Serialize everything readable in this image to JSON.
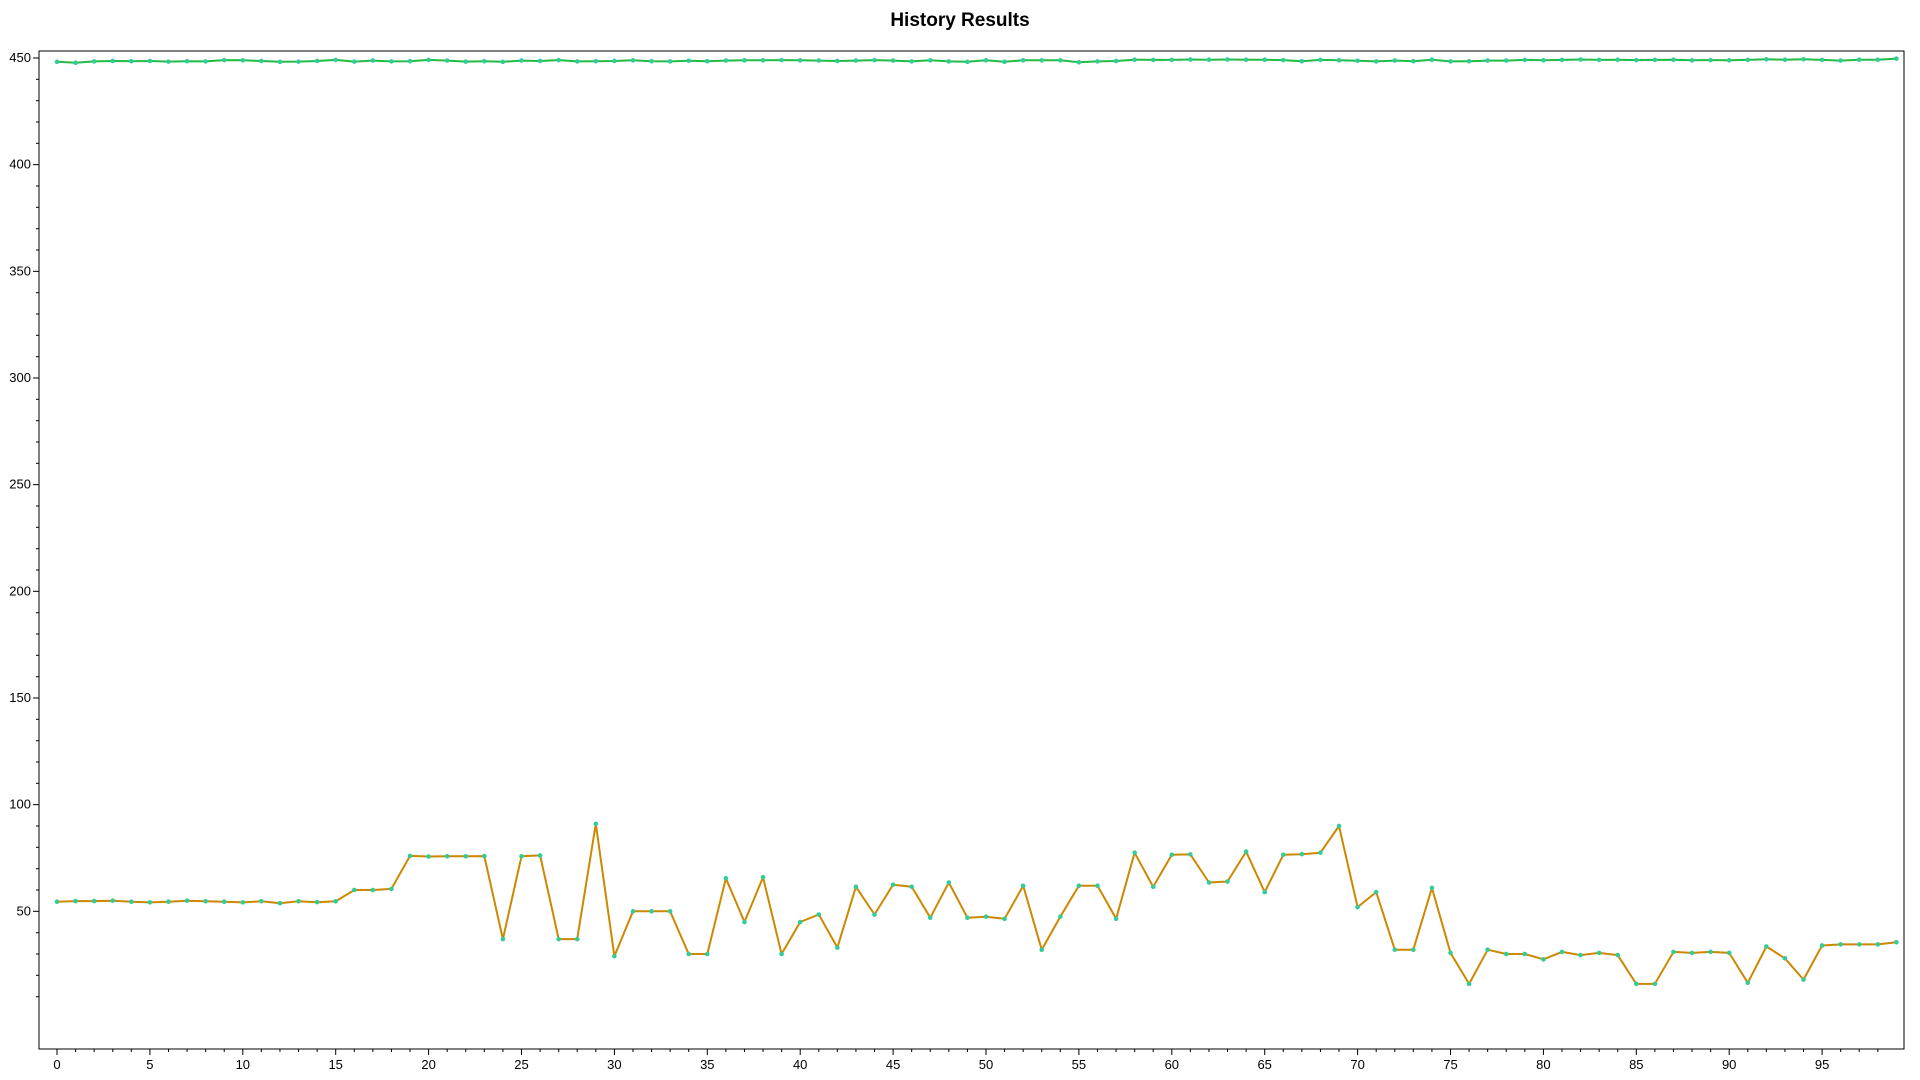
{
  "chart_data": {
    "type": "line",
    "title": "History Results",
    "xlabel": "",
    "ylabel": "",
    "xlim": [
      -1,
      99
    ],
    "ylim": [
      10,
      455
    ],
    "x_ticks": [
      0,
      5,
      10,
      15,
      20,
      25,
      30,
      35,
      40,
      45,
      50,
      55,
      60,
      65,
      70,
      75,
      80,
      85,
      90,
      95
    ],
    "y_ticks": [
      50,
      100,
      150,
      200,
      250,
      300,
      350,
      400,
      450
    ],
    "grid": false,
    "legend": "none",
    "marker_color": "#33cc99",
    "series": [
      {
        "color": "#22bb44",
        "values": [
          448.2,
          447.8,
          448.4,
          448.6,
          448.5,
          448.6,
          448.3,
          448.5,
          448.4,
          449.0,
          448.9,
          448.6,
          448.2,
          448.3,
          448.6,
          449.1,
          448.3,
          448.8,
          448.4,
          448.5,
          449.1,
          448.8,
          448.3,
          448.5,
          448.2,
          448.8,
          448.6,
          449.0,
          448.4,
          448.5,
          448.6,
          448.9,
          448.5,
          448.4,
          448.7,
          448.5,
          448.8,
          448.9,
          448.9,
          449.0,
          448.9,
          448.8,
          448.6,
          448.8,
          449.0,
          448.8,
          448.4,
          448.9,
          448.4,
          448.2,
          448.9,
          448.2,
          448.9,
          448.9,
          448.9,
          448.0,
          448.4,
          448.6,
          449.2,
          449.1,
          449.1,
          449.3,
          449.2,
          449.3,
          449.2,
          449.2,
          449.0,
          448.5,
          449.1,
          448.9,
          448.7,
          448.4,
          448.8,
          448.5,
          449.2,
          448.4,
          448.5,
          448.8,
          448.8,
          449.1,
          448.9,
          449.1,
          449.3,
          449.1,
          449.2,
          449.0,
          449.1,
          449.2,
          448.9,
          449.0,
          448.9,
          449.1,
          449.4,
          449.2,
          449.4,
          449.1,
          448.8,
          449.2,
          449.2,
          449.7
        ]
      },
      {
        "color": "#cc8800",
        "values": [
          54.5,
          54.8,
          54.8,
          55.0,
          54.5,
          54.2,
          54.5,
          55.0,
          54.7,
          54.5,
          54.2,
          54.7,
          53.8,
          54.7,
          54.3,
          54.7,
          60.0,
          60.0,
          60.5,
          76.0,
          75.7,
          75.8,
          75.8,
          75.9,
          37.0,
          75.8,
          76.2,
          37.0,
          37.0,
          91.0,
          29.0,
          50.0,
          50.0,
          50.0,
          30.0,
          30.0,
          65.5,
          45.0,
          66.0,
          30.0,
          45.0,
          48.5,
          33.0,
          61.5,
          48.5,
          62.5,
          61.5,
          47.0,
          63.5,
          47.0,
          47.5,
          46.5,
          62.0,
          32.0,
          47.5,
          62.0,
          62.0,
          46.5,
          77.5,
          61.5,
          76.5,
          76.7,
          63.5,
          64.0,
          78.0,
          59.0,
          76.5,
          76.8,
          77.5,
          90.0,
          52.0,
          59.0,
          32.0,
          32.0,
          61.0,
          30.5,
          16.0,
          32.0,
          30.0,
          30.0,
          27.5,
          31.0,
          29.5,
          30.5,
          29.5,
          16.0,
          16.0,
          31.0,
          30.5,
          31.0,
          30.5,
          16.5,
          33.5,
          28.0,
          18.0,
          34.0,
          34.5,
          34.5,
          34.5,
          35.5
        ]
      }
    ]
  }
}
